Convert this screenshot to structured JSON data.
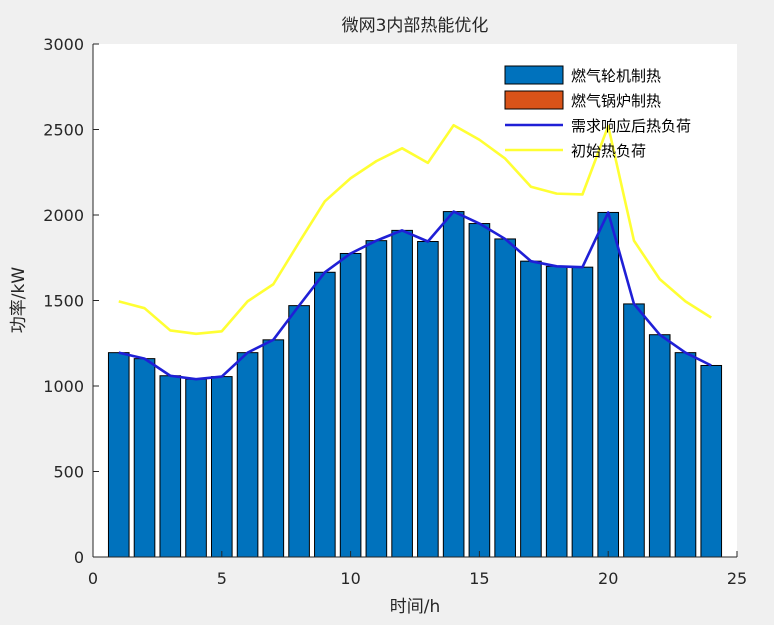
{
  "chart_data": {
    "type": "bar",
    "title": "微网3内部热能优化",
    "xlabel": "时间/h",
    "ylabel": "功率/kW",
    "xlim": [
      0,
      25
    ],
    "ylim": [
      0,
      3000
    ],
    "xticks": [
      0,
      5,
      10,
      15,
      20,
      25
    ],
    "yticks": [
      0,
      500,
      1000,
      1500,
      2000,
      2500,
      3000
    ],
    "grid": false,
    "legend_position": "top-right",
    "x": [
      1,
      2,
      3,
      4,
      5,
      6,
      7,
      8,
      9,
      10,
      11,
      12,
      13,
      14,
      15,
      16,
      17,
      18,
      19,
      20,
      21,
      22,
      23,
      24
    ],
    "series": [
      {
        "name": "燃气轮机制热",
        "kind": "bar",
        "color": "#0072bd",
        "values": [
          1195,
          1160,
          1060,
          1040,
          1055,
          1195,
          1270,
          1470,
          1665,
          1775,
          1850,
          1910,
          1845,
          2020,
          1950,
          1860,
          1730,
          1700,
          1695,
          2015,
          1480,
          1300,
          1195,
          1120
        ]
      },
      {
        "name": "燃气锅炉制热",
        "kind": "bar",
        "color": "#d95319",
        "values": [
          0,
          0,
          0,
          0,
          0,
          0,
          0,
          0,
          0,
          0,
          0,
          0,
          0,
          0,
          0,
          0,
          0,
          0,
          0,
          0,
          0,
          0,
          0,
          0
        ]
      },
      {
        "name": "需求响应后热负荷",
        "kind": "line",
        "color": "#1f1fd6",
        "values": [
          1195,
          1160,
          1060,
          1040,
          1055,
          1195,
          1270,
          1470,
          1665,
          1775,
          1850,
          1910,
          1845,
          2020,
          1950,
          1860,
          1730,
          1700,
          1695,
          2015,
          1480,
          1300,
          1195,
          1120
        ]
      },
      {
        "name": "初始热负荷",
        "kind": "line",
        "color": "#ffff33",
        "values": [
          1495,
          1455,
          1325,
          1305,
          1320,
          1495,
          1595,
          1840,
          2080,
          2215,
          2315,
          2390,
          2305,
          2525,
          2440,
          2330,
          2165,
          2125,
          2120,
          2520,
          1850,
          1625,
          1495,
          1400
        ]
      }
    ]
  }
}
